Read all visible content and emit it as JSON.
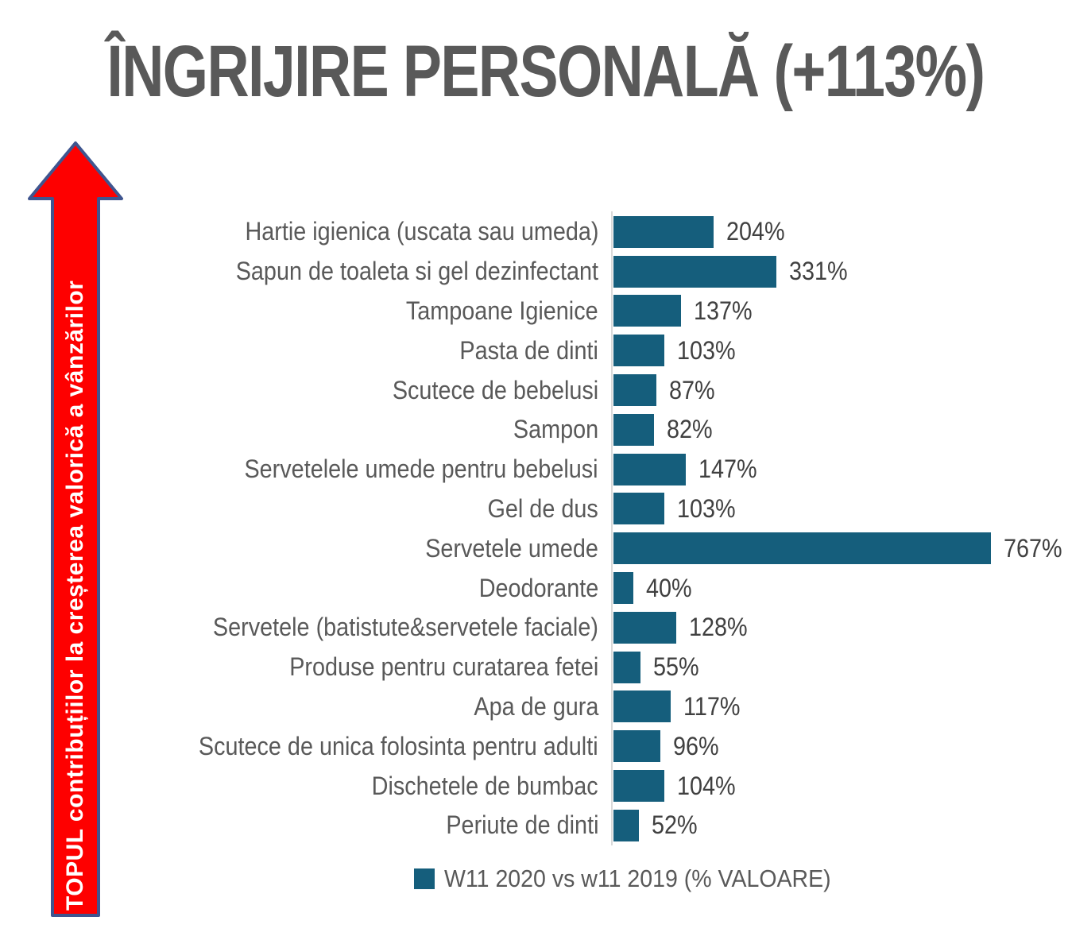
{
  "title": "ÎNGRIJIRE PERSONALĂ (+113%)",
  "arrow": {
    "label": "TOPUL contribuțiilor la creșterea valorică a vânzărilor"
  },
  "chart_data": {
    "type": "bar",
    "orientation": "horizontal",
    "title": "ÎNGRIJIRE PERSONALĂ (+113%)",
    "categories": [
      "Hartie igienica (uscata sau umeda)",
      "Sapun de toaleta si gel dezinfectant",
      "Tampoane Igienice",
      "Pasta de dinti",
      "Scutece de bebelusi",
      "Sampon",
      "Servetelele umede pentru bebelusi",
      "Gel de dus",
      "Servetele umede",
      "Deodorante",
      "Servetele (batistute&servetele faciale)",
      "Produse pentru curatarea fetei",
      "Apa de gura",
      "Scutece de unica folosinta pentru adulti",
      "Dischetele de bumbac",
      "Periute de dinti"
    ],
    "values": [
      204,
      331,
      137,
      103,
      87,
      82,
      147,
      103,
      767,
      40,
      128,
      55,
      117,
      96,
      104,
      52
    ],
    "value_suffix": "%",
    "xlim": [
      0,
      800
    ],
    "grid": false,
    "legend": "W11 2020 vs w11 2019 (% VALOARE)",
    "legend_position": "bottom"
  },
  "colors": {
    "bar": "#155E7C",
    "title_text": "#595959",
    "label_text": "#595959",
    "value_text": "#404040",
    "axis_line": "#D9D9D9",
    "arrow_fill": "#FE0000",
    "arrow_border": "#3F558F",
    "arrow_text": "#FFFFFF"
  }
}
